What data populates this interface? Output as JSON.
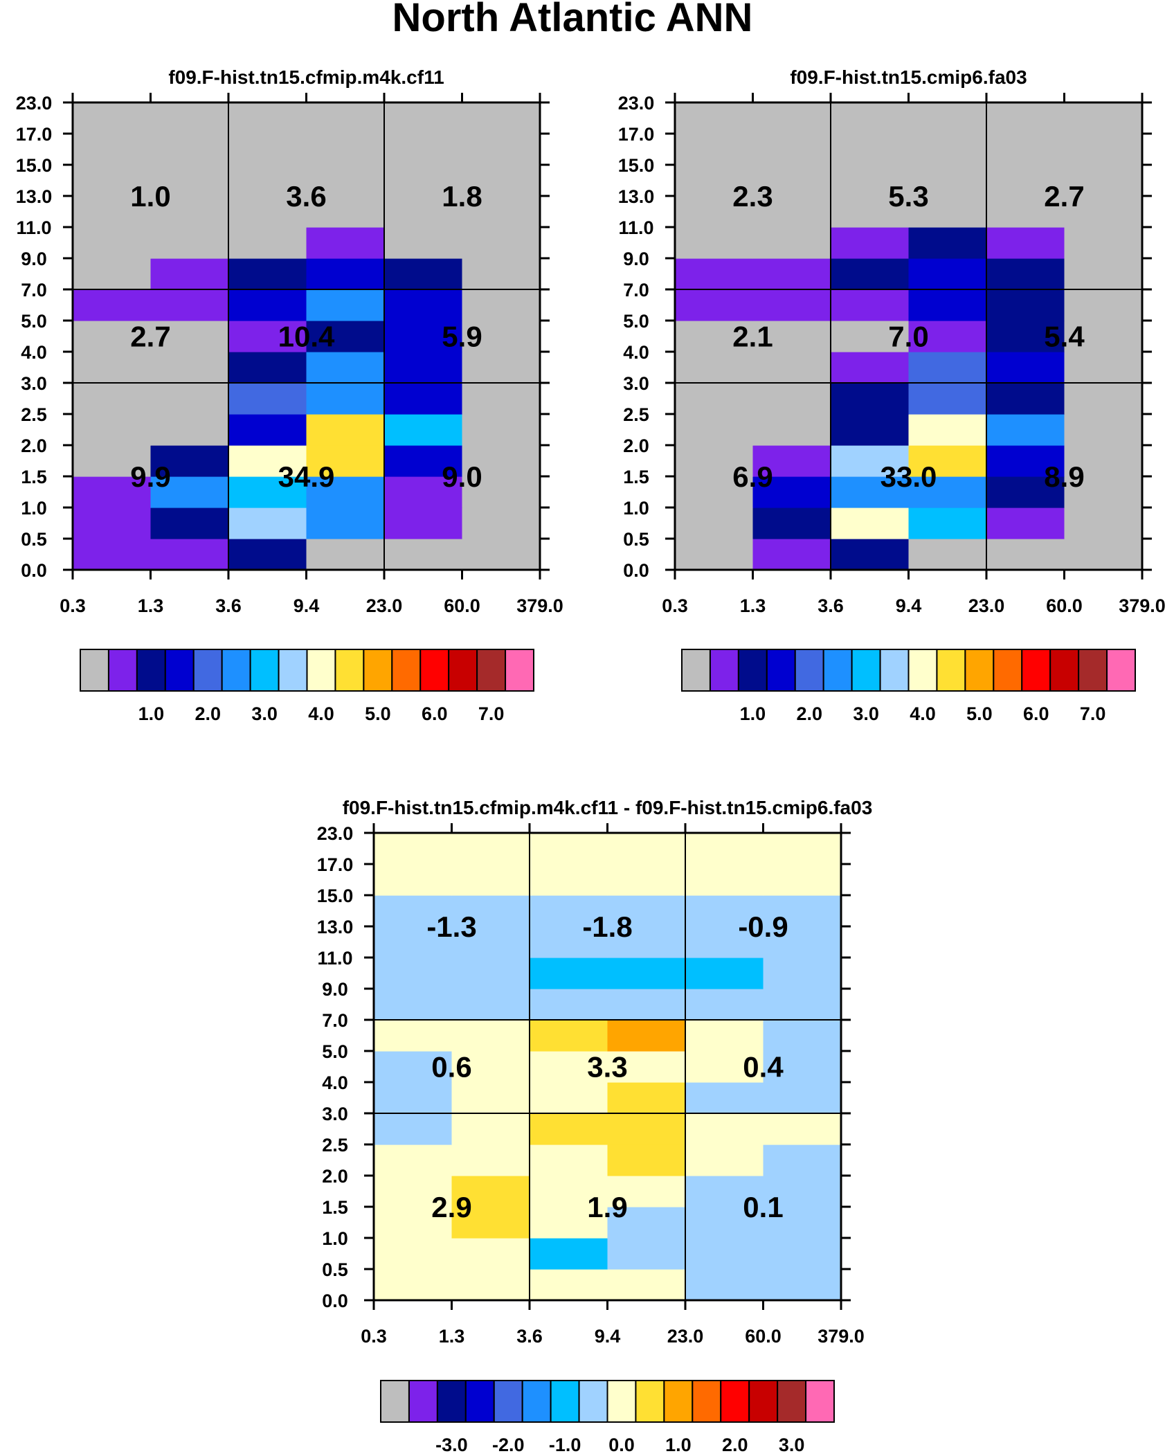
{
  "title": "North Atlantic ANN",
  "chart_data": [
    {
      "type": "heatmap",
      "title": "f09.F-hist.tn15.cfmip.m4k.cf11",
      "x_tick_labels": [
        "0.3",
        "1.3",
        "3.6",
        "9.4",
        "23.0",
        "60.0",
        "379.0"
      ],
      "y_tick_labels": [
        "0.0",
        "0.5",
        "1.0",
        "1.5",
        "2.0",
        "2.5",
        "3.0",
        "4.0",
        "5.0",
        "7.0",
        "9.0",
        "11.0",
        "13.0",
        "15.0",
        "17.0",
        "23.0"
      ],
      "cell_colors": [
        [
          "#7D22EA",
          "#7D22EA",
          "#000C8C",
          "#BEBEBE",
          "#BEBEBE",
          "#BEBEBE"
        ],
        [
          "#7D22EA",
          "#000C8C",
          "#A0D2FF",
          "#1E90FF",
          "#7D22EA",
          "#BEBEBE"
        ],
        [
          "#7D22EA",
          "#1E90FF",
          "#00BFFF",
          "#1E90FF",
          "#7D22EA",
          "#BEBEBE"
        ],
        [
          "#BEBEBE",
          "#000C8C",
          "#FFFFCC",
          "#FFE033",
          "#0000D0",
          "#BEBEBE"
        ],
        [
          "#BEBEBE",
          "#BEBEBE",
          "#0000D0",
          "#FFE033",
          "#00BFFF",
          "#BEBEBE"
        ],
        [
          "#BEBEBE",
          "#BEBEBE",
          "#4169E1",
          "#1E90FF",
          "#0000D0",
          "#BEBEBE"
        ],
        [
          "#BEBEBE",
          "#BEBEBE",
          "#000C8C",
          "#1E90FF",
          "#0000D0",
          "#BEBEBE"
        ],
        [
          "#BEBEBE",
          "#BEBEBE",
          "#7D22EA",
          "#000C8C",
          "#0000D0",
          "#BEBEBE"
        ],
        [
          "#7D22EA",
          "#7D22EA",
          "#0000D0",
          "#1E90FF",
          "#0000D0",
          "#BEBEBE"
        ],
        [
          "#BEBEBE",
          "#7D22EA",
          "#000C8C",
          "#0000D0",
          "#000C8C",
          "#BEBEBE"
        ],
        [
          "#BEBEBE",
          "#BEBEBE",
          "#BEBEBE",
          "#7D22EA",
          "#BEBEBE",
          "#BEBEBE"
        ],
        [
          "#BEBEBE",
          "#BEBEBE",
          "#BEBEBE",
          "#BEBEBE",
          "#BEBEBE",
          "#BEBEBE"
        ],
        [
          "#BEBEBE",
          "#BEBEBE",
          "#BEBEBE",
          "#BEBEBE",
          "#BEBEBE",
          "#BEBEBE"
        ],
        [
          "#BEBEBE",
          "#BEBEBE",
          "#BEBEBE",
          "#BEBEBE",
          "#BEBEBE",
          "#BEBEBE"
        ],
        [
          "#BEBEBE",
          "#BEBEBE",
          "#BEBEBE",
          "#BEBEBE",
          "#BEBEBE",
          "#BEBEBE"
        ]
      ],
      "block_values": [
        [
          "9.9",
          "34.9",
          "9.0"
        ],
        [
          "2.7",
          "10.4",
          "5.9"
        ],
        [
          "1.0",
          "3.6",
          "1.8"
        ]
      ],
      "colorbar": {
        "colors": [
          "#BEBEBE",
          "#7D22EA",
          "#000C8C",
          "#0000D0",
          "#4169E1",
          "#1E90FF",
          "#00BFFF",
          "#A0D2FF",
          "#FFFFCC",
          "#FFE033",
          "#FFA500",
          "#FF6A00",
          "#FF0000",
          "#C80000",
          "#A52A2A",
          "#FF69B4"
        ],
        "labels": [
          "1.0",
          "2.0",
          "3.0",
          "4.0",
          "5.0",
          "6.0",
          "7.0"
        ]
      }
    },
    {
      "type": "heatmap",
      "title": "f09.F-hist.tn15.cmip6.fa03",
      "x_tick_labels": [
        "0.3",
        "1.3",
        "3.6",
        "9.4",
        "23.0",
        "60.0",
        "379.0"
      ],
      "y_tick_labels": [
        "0.0",
        "0.5",
        "1.0",
        "1.5",
        "2.0",
        "2.5",
        "3.0",
        "4.0",
        "5.0",
        "7.0",
        "9.0",
        "11.0",
        "13.0",
        "15.0",
        "17.0",
        "23.0"
      ],
      "cell_colors": [
        [
          "#BEBEBE",
          "#7D22EA",
          "#000C8C",
          "#BEBEBE",
          "#BEBEBE",
          "#BEBEBE"
        ],
        [
          "#BEBEBE",
          "#000C8C",
          "#FFFFCC",
          "#00BFFF",
          "#7D22EA",
          "#BEBEBE"
        ],
        [
          "#BEBEBE",
          "#0000D0",
          "#1E90FF",
          "#1E90FF",
          "#000C8C",
          "#BEBEBE"
        ],
        [
          "#BEBEBE",
          "#7D22EA",
          "#A0D2FF",
          "#FFE033",
          "#0000D0",
          "#BEBEBE"
        ],
        [
          "#BEBEBE",
          "#BEBEBE",
          "#000C8C",
          "#FFFFCC",
          "#1E90FF",
          "#BEBEBE"
        ],
        [
          "#BEBEBE",
          "#BEBEBE",
          "#000C8C",
          "#4169E1",
          "#000C8C",
          "#BEBEBE"
        ],
        [
          "#BEBEBE",
          "#BEBEBE",
          "#7D22EA",
          "#4169E1",
          "#0000D0",
          "#BEBEBE"
        ],
        [
          "#BEBEBE",
          "#BEBEBE",
          "#BEBEBE",
          "#7D22EA",
          "#000C8C",
          "#BEBEBE"
        ],
        [
          "#7D22EA",
          "#7D22EA",
          "#7D22EA",
          "#0000D0",
          "#000C8C",
          "#BEBEBE"
        ],
        [
          "#7D22EA",
          "#7D22EA",
          "#000C8C",
          "#0000D0",
          "#000C8C",
          "#BEBEBE"
        ],
        [
          "#BEBEBE",
          "#BEBEBE",
          "#7D22EA",
          "#000C8C",
          "#7D22EA",
          "#BEBEBE"
        ],
        [
          "#BEBEBE",
          "#BEBEBE",
          "#BEBEBE",
          "#BEBEBE",
          "#BEBEBE",
          "#BEBEBE"
        ],
        [
          "#BEBEBE",
          "#BEBEBE",
          "#BEBEBE",
          "#BEBEBE",
          "#BEBEBE",
          "#BEBEBE"
        ],
        [
          "#BEBEBE",
          "#BEBEBE",
          "#BEBEBE",
          "#BEBEBE",
          "#BEBEBE",
          "#BEBEBE"
        ],
        [
          "#BEBEBE",
          "#BEBEBE",
          "#BEBEBE",
          "#BEBEBE",
          "#BEBEBE",
          "#BEBEBE"
        ]
      ],
      "block_values": [
        [
          "6.9",
          "33.0",
          "8.9"
        ],
        [
          "2.1",
          "7.0",
          "5.4"
        ],
        [
          "2.3",
          "5.3",
          "2.7"
        ]
      ],
      "colorbar": {
        "colors": [
          "#BEBEBE",
          "#7D22EA",
          "#000C8C",
          "#0000D0",
          "#4169E1",
          "#1E90FF",
          "#00BFFF",
          "#A0D2FF",
          "#FFFFCC",
          "#FFE033",
          "#FFA500",
          "#FF6A00",
          "#FF0000",
          "#C80000",
          "#A52A2A",
          "#FF69B4"
        ],
        "labels": [
          "1.0",
          "2.0",
          "3.0",
          "4.0",
          "5.0",
          "6.0",
          "7.0"
        ]
      }
    },
    {
      "type": "heatmap",
      "title": "f09.F-hist.tn15.cfmip.m4k.cf11 - f09.F-hist.tn15.cmip6.fa03",
      "x_tick_labels": [
        "0.3",
        "1.3",
        "3.6",
        "9.4",
        "23.0",
        "60.0",
        "379.0"
      ],
      "y_tick_labels": [
        "0.0",
        "0.5",
        "1.0",
        "1.5",
        "2.0",
        "2.5",
        "3.0",
        "4.0",
        "5.0",
        "7.0",
        "9.0",
        "11.0",
        "13.0",
        "15.0",
        "17.0",
        "23.0"
      ],
      "cell_colors": [
        [
          "#FFFFCC",
          "#FFFFCC",
          "#FFFFCC",
          "#FFFFCC",
          "#A0D2FF",
          "#A0D2FF"
        ],
        [
          "#FFFFCC",
          "#FFFFCC",
          "#00BFFF",
          "#A0D2FF",
          "#A0D2FF",
          "#A0D2FF"
        ],
        [
          "#FFFFCC",
          "#FFE033",
          "#FFFFCC",
          "#A0D2FF",
          "#A0D2FF",
          "#A0D2FF"
        ],
        [
          "#FFFFCC",
          "#FFE033",
          "#FFFFCC",
          "#FFFFCC",
          "#A0D2FF",
          "#A0D2FF"
        ],
        [
          "#FFFFCC",
          "#FFFFCC",
          "#FFFFCC",
          "#FFE033",
          "#FFFFCC",
          "#A0D2FF"
        ],
        [
          "#A0D2FF",
          "#FFFFCC",
          "#FFE033",
          "#FFE033",
          "#FFFFCC",
          "#FFFFCC"
        ],
        [
          "#A0D2FF",
          "#FFFFCC",
          "#FFFFCC",
          "#FFE033",
          "#A0D2FF",
          "#A0D2FF"
        ],
        [
          "#A0D2FF",
          "#FFFFCC",
          "#FFFFCC",
          "#FFFFCC",
          "#FFFFCC",
          "#A0D2FF"
        ],
        [
          "#FFFFCC",
          "#FFFFCC",
          "#FFE033",
          "#FFA500",
          "#FFFFCC",
          "#A0D2FF"
        ],
        [
          "#A0D2FF",
          "#A0D2FF",
          "#A0D2FF",
          "#A0D2FF",
          "#A0D2FF",
          "#A0D2FF"
        ],
        [
          "#A0D2FF",
          "#A0D2FF",
          "#00BFFF",
          "#00BFFF",
          "#00BFFF",
          "#A0D2FF"
        ],
        [
          "#A0D2FF",
          "#A0D2FF",
          "#A0D2FF",
          "#A0D2FF",
          "#A0D2FF",
          "#A0D2FF"
        ],
        [
          "#A0D2FF",
          "#A0D2FF",
          "#A0D2FF",
          "#A0D2FF",
          "#A0D2FF",
          "#A0D2FF"
        ],
        [
          "#FFFFCC",
          "#FFFFCC",
          "#FFFFCC",
          "#FFFFCC",
          "#FFFFCC",
          "#FFFFCC"
        ],
        [
          "#FFFFCC",
          "#FFFFCC",
          "#FFFFCC",
          "#FFFFCC",
          "#FFFFCC",
          "#FFFFCC"
        ]
      ],
      "block_values": [
        [
          "2.9",
          "1.9",
          "0.1"
        ],
        [
          "0.6",
          "3.3",
          "0.4"
        ],
        [
          "-1.3",
          "-1.8",
          "-0.9"
        ]
      ],
      "colorbar": {
        "colors": [
          "#BEBEBE",
          "#7D22EA",
          "#000C8C",
          "#0000D0",
          "#4169E1",
          "#1E90FF",
          "#00BFFF",
          "#A0D2FF",
          "#FFFFCC",
          "#FFE033",
          "#FFA500",
          "#FF6A00",
          "#FF0000",
          "#C80000",
          "#A52A2A",
          "#FF69B4"
        ],
        "labels": [
          "-3.0",
          "-2.0",
          "-1.0",
          "0.0",
          "1.0",
          "2.0",
          "3.0"
        ]
      }
    }
  ]
}
